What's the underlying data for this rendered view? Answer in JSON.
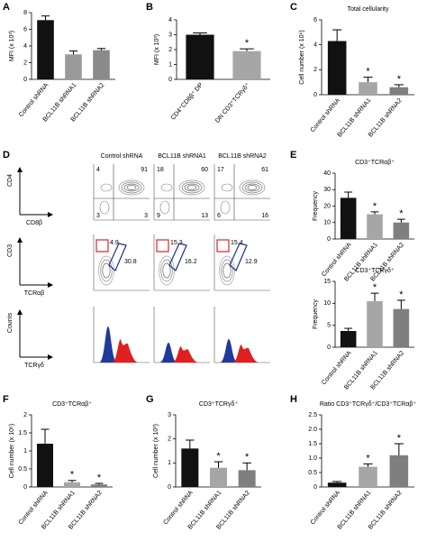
{
  "chart_data": [
    {
      "type": "bar",
      "label": "A",
      "y_label": "MFI (x 10³)",
      "categories": [
        "Control shRNA",
        "BCL11B shRNA1",
        "BCL11B shRNA2"
      ],
      "values": [
        7.1,
        3.0,
        3.5
      ],
      "errors": [
        0.5,
        0.4,
        0.2
      ],
      "colors": [
        "#111111",
        "#9a9a9a",
        "#8a8a8a"
      ],
      "ylim": [
        0,
        8
      ],
      "yticks": [
        0,
        2,
        4,
        6,
        8
      ]
    },
    {
      "type": "bar",
      "label": "B",
      "y_label": "MFI (x 10³)",
      "categories": [
        "CD4⁺CD8β⁺ DP",
        "DN CD3⁺TCRγδ⁺"
      ],
      "values": [
        3.0,
        1.9
      ],
      "errors": [
        0.12,
        0.15
      ],
      "significance": [
        null,
        "*"
      ],
      "colors": [
        "#111111",
        "#a6a6a6"
      ],
      "ylim": [
        0,
        4
      ],
      "yticks": [
        0,
        1,
        2,
        3,
        4
      ]
    },
    {
      "type": "bar",
      "label": "C",
      "title": "Total cellularity",
      "y_label": "Cell number (x 10⁶)",
      "categories": [
        "Control shRNA",
        "BCL11B shRNA1",
        "BCL11B shRNA2"
      ],
      "values": [
        4.3,
        1.0,
        0.6
      ],
      "errors": [
        0.9,
        0.4,
        0.2
      ],
      "significance": [
        null,
        "*",
        "*"
      ],
      "colors": [
        "#111111",
        "#a6a6a6",
        "#7f7f7f"
      ],
      "ylim": [
        0,
        6
      ],
      "yticks": [
        0,
        2,
        4,
        6
      ]
    },
    {
      "type": "bar",
      "label": "E",
      "title": "CD3⁺TCRαβ⁺",
      "y_label": "Frequency",
      "categories": [
        "Control shRNA",
        "BCL11B shRNA1",
        "BCL11B shRNA2"
      ],
      "values": [
        25,
        15,
        10
      ],
      "errors": [
        3.5,
        1.5,
        2
      ],
      "significance": [
        null,
        "*",
        "*"
      ],
      "colors": [
        "#111111",
        "#a6a6a6",
        "#7f7f7f"
      ],
      "ylim": [
        0,
        40
      ],
      "yticks": [
        0,
        10,
        20,
        30,
        40
      ]
    },
    {
      "type": "bar",
      "title": "CD3⁺TCRγδ⁺",
      "y_label": "Frequency",
      "categories": [
        "Control shRNA",
        "BCL11B shRNA1",
        "BCL11B shRNA2"
      ],
      "values": [
        3.7,
        10.5,
        8.7
      ],
      "errors": [
        0.6,
        1.8,
        2.0
      ],
      "significance": [
        null,
        "*",
        "*"
      ],
      "colors": [
        "#111111",
        "#a6a6a6",
        "#7f7f7f"
      ],
      "ylim": [
        0,
        15
      ],
      "yticks": [
        0,
        5,
        10,
        15
      ]
    },
    {
      "type": "bar",
      "label": "F",
      "title": "CD3⁺TCRαβ⁺",
      "y_label": "Cell number (x 10⁶)",
      "categories": [
        "Control shRNA",
        "BCL11B shRNA1",
        "BCL11B shRNA2"
      ],
      "values": [
        1.2,
        0.13,
        0.07
      ],
      "errors": [
        0.4,
        0.05,
        0.03
      ],
      "significance": [
        null,
        "*",
        "*"
      ],
      "colors": [
        "#111111",
        "#a6a6a6",
        "#7f7f7f"
      ],
      "ylim": [
        0,
        2
      ],
      "yticks": [
        0,
        0.5,
        1,
        1.5,
        2
      ]
    },
    {
      "type": "bar",
      "label": "G",
      "title": "CD3⁺TCRγδ⁺",
      "y_label": "Cell number (x 10³)",
      "categories": [
        "Control shRNA",
        "BCL11B shRNA1",
        "BCL11B shRNA2"
      ],
      "values": [
        1.6,
        0.8,
        0.7
      ],
      "errors": [
        0.35,
        0.25,
        0.3
      ],
      "significance": [
        null,
        "*",
        "*"
      ],
      "colors": [
        "#111111",
        "#a6a6a6",
        "#7f7f7f"
      ],
      "ylim": [
        0,
        3
      ],
      "yticks": [
        0,
        1,
        2,
        3
      ]
    },
    {
      "type": "bar",
      "label": "H",
      "title": "Ratio CD3⁺TCRγδ⁺/CD3⁺TCRαβ⁺",
      "categories": [
        "Control shRNA",
        "BCL11B shRNA1",
        "BCL11B shRNA2"
      ],
      "values": [
        0.15,
        0.7,
        1.1
      ],
      "errors": [
        0.04,
        0.1,
        0.4
      ],
      "significance": [
        null,
        "*",
        "*"
      ],
      "colors": [
        "#111111",
        "#a6a6a6",
        "#7f7f7f"
      ],
      "ylim": [
        0,
        2.5
      ],
      "yticks": [
        0,
        0.5,
        {
          "value": 1,
          "label": "1.0"
        },
        1.5,
        {
          "value": 2,
          "label": "2.0"
        },
        2.5
      ]
    }
  ],
  "flow": {
    "label": "D",
    "columns": [
      "Control shRNA",
      "BCL11B shRNA1",
      "BCL11B shRNA2"
    ],
    "rows": [
      {
        "y_axis": "CD4",
        "x_axis": "CD8β",
        "quadrants": [
          [
            4,
            91,
            3,
            3
          ],
          [
            18,
            60,
            9,
            13
          ],
          [
            17,
            61,
            6,
            16
          ]
        ]
      },
      {
        "y_axis": "CD3",
        "x_axis": "TCRαβ",
        "gates": [
          [
            4.9,
            30.8
          ],
          [
            15.3,
            16.2
          ],
          [
            15.4,
            12.9
          ]
        ]
      },
      {
        "y_axis": "Counts",
        "x_axis": "TCRγδ"
      }
    ]
  }
}
